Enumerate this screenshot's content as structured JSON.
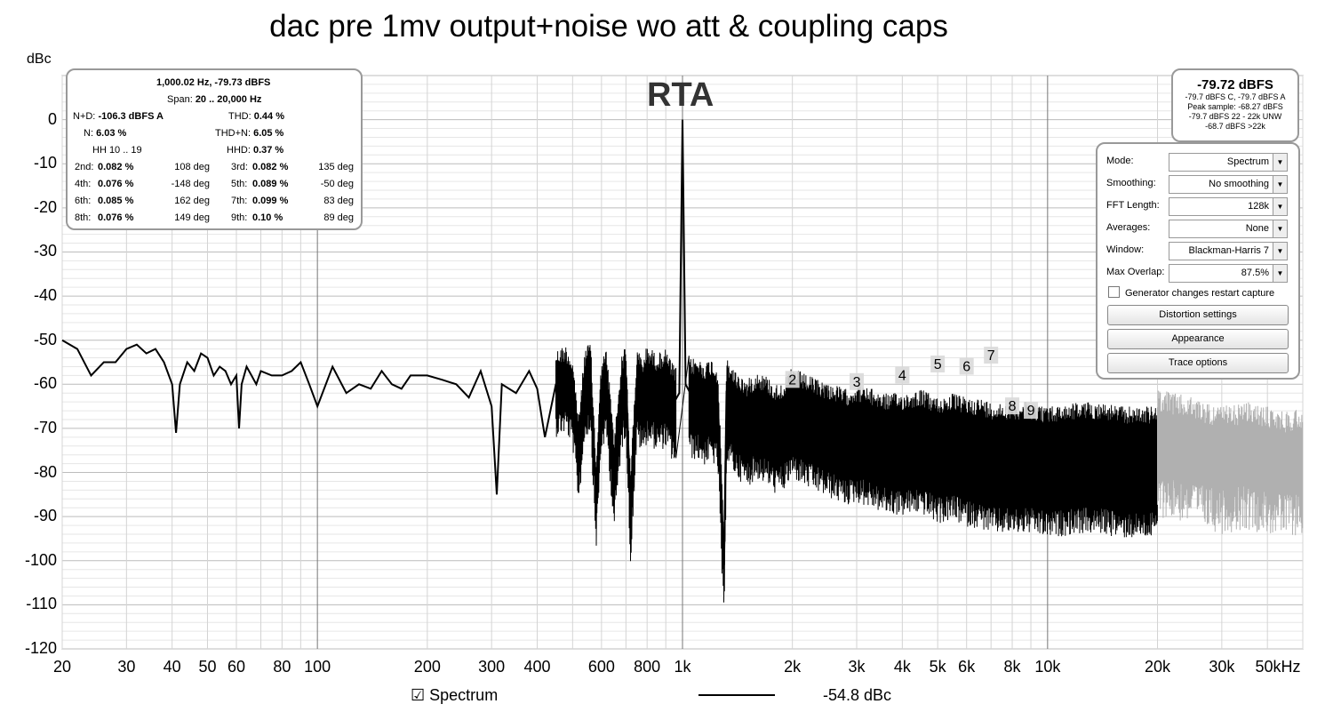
{
  "window": {
    "title": "dac pre 1mv output+noise wo att & coupling caps",
    "plot_label": "RTA"
  },
  "stats_panel": {
    "header": "1,000.02 Hz, -79.73 dBFS",
    "span_label": "Span:",
    "span_value": "20 .. 20,000 Hz",
    "nd_label": "N+D:",
    "nd_value": "-106.3 dBFS A",
    "thd_label": "THD:",
    "thd_value": "0.44 %",
    "n_label": "N:",
    "n_value": "6.03 %",
    "thdn_label": "THD+N:",
    "thdn_value": "6.05 %",
    "hh_label": "HH 10 .. 19",
    "hhd_label": "HHD:",
    "hhd_value": "0.37 %",
    "harmonics": [
      {
        "l1": "2nd:",
        "v1": "0.082 %",
        "d1": "108 deg",
        "l2": "3rd:",
        "v2": "0.082 %",
        "d2": "135 deg"
      },
      {
        "l1": "4th:",
        "v1": "0.076 %",
        "d1": "-148 deg",
        "l2": "5th:",
        "v2": "0.089 %",
        "d2": "-50 deg"
      },
      {
        "l1": "6th:",
        "v1": "0.085 %",
        "d1": "162 deg",
        "l2": "7th:",
        "v2": "0.099 %",
        "d2": "83 deg"
      },
      {
        "l1": "8th:",
        "v1": "0.076 %",
        "d1": "149 deg",
        "l2": "9th:",
        "v2": "0.10 %",
        "d2": "89 deg"
      }
    ]
  },
  "level_panel": {
    "main": "-79.72 dBFS",
    "line1": "-79.7 dBFS C, -79.7 dBFS A",
    "line2": "Peak sample: -68.27 dBFS",
    "line3": "-79.7 dBFS 22 - 22k UNW",
    "line4": "-68.7 dBFS >22k"
  },
  "controls": {
    "mode": {
      "label": "Mode:",
      "value": "Spectrum"
    },
    "smoothing": {
      "label": "Smoothing:",
      "value": "No  smoothing"
    },
    "fft_length": {
      "label": "FFT Length:",
      "value": "128k"
    },
    "averages": {
      "label": "Averages:",
      "value": "None"
    },
    "window": {
      "label": "Window:",
      "value": "Blackman-Harris 7"
    },
    "max_overlap": {
      "label": "Max Overlap:",
      "value": "87.5%"
    },
    "generator_checkbox": "Generator changes restart capture",
    "distortion_button": "Distortion settings",
    "appearance_button": "Appearance",
    "trace_button": "Trace options"
  },
  "legend": {
    "series_name": "Spectrum",
    "value": "-54.8 dBc"
  },
  "colors": {
    "trace": "#000000",
    "trace_out_of_span": "#b0b0b0",
    "grid": "#d0d0d0",
    "panel_border": "#999999"
  },
  "chart_data": {
    "type": "line",
    "title": "dac pre 1mv output+noise wo att & coupling caps",
    "ylabel": "dBc",
    "xlabel": "",
    "x_scale": "log",
    "xlim": [
      20,
      50000
    ],
    "ylim": [
      -120,
      10
    ],
    "grid": true,
    "y_ticks": [
      "0",
      "-10",
      "-20",
      "-30",
      "-40",
      "-50",
      "-60",
      "-70",
      "-80",
      "-90",
      "-100",
      "-110",
      "-120"
    ],
    "x_ticks": [
      {
        "v": 20,
        "t": "20"
      },
      {
        "v": 30,
        "t": "30"
      },
      {
        "v": 40,
        "t": "40"
      },
      {
        "v": 50,
        "t": "50"
      },
      {
        "v": 60,
        "t": "60"
      },
      {
        "v": 80,
        "t": "80"
      },
      {
        "v": 100,
        "t": "100"
      },
      {
        "v": 200,
        "t": "200"
      },
      {
        "v": 300,
        "t": "300"
      },
      {
        "v": 400,
        "t": "400"
      },
      {
        "v": 600,
        "t": "600"
      },
      {
        "v": 800,
        "t": "800"
      },
      {
        "v": 1000,
        "t": "1k"
      },
      {
        "v": 2000,
        "t": "2k"
      },
      {
        "v": 3000,
        "t": "3k"
      },
      {
        "v": 4000,
        "t": "4k"
      },
      {
        "v": 5000,
        "t": "5k"
      },
      {
        "v": 6000,
        "t": "6k"
      },
      {
        "v": 8000,
        "t": "8k"
      },
      {
        "v": 10000,
        "t": "10k"
      },
      {
        "v": 20000,
        "t": "20k"
      },
      {
        "v": 30000,
        "t": "30k"
      },
      {
        "v": 50000,
        "t": "50kHz"
      }
    ],
    "series": [
      {
        "name": "Spectrum",
        "x": [
          20,
          22,
          24,
          26,
          28,
          30,
          32,
          34,
          36,
          38,
          40,
          41,
          42,
          44,
          46,
          48,
          50,
          52,
          54,
          56,
          58,
          60,
          61,
          62,
          64,
          66,
          68,
          70,
          75,
          80,
          85,
          90,
          95,
          100,
          110,
          120,
          130,
          140,
          150,
          160,
          170,
          180,
          200,
          220,
          240,
          260,
          280,
          300,
          310,
          320,
          350,
          380,
          400,
          420,
          450,
          480,
          500,
          520,
          540,
          560,
          580,
          600,
          620,
          650,
          680,
          700,
          720,
          750,
          780,
          800,
          850,
          900,
          950,
          980,
          1000,
          1020,
          1050,
          1100,
          1150,
          1200,
          1250,
          1300,
          1320,
          1350,
          1400,
          1500,
          1600,
          1700,
          1800,
          1900,
          2000,
          2200,
          2400,
          2600,
          2800,
          3000,
          3300,
          3600,
          4000,
          4500,
          5000,
          5500,
          6000,
          6500,
          7000,
          8000,
          9000,
          10000,
          12000,
          14000,
          16000,
          18000,
          20000
        ],
        "y": [
          -50,
          -52,
          -58,
          -55,
          -55,
          -52,
          -51,
          -53,
          -52,
          -55,
          -60,
          -71,
          -60,
          -55,
          -57,
          -53,
          -54,
          -58,
          -56,
          -57,
          -60,
          -58,
          -70,
          -60,
          -56,
          -58,
          -60,
          -57,
          -58,
          -58,
          -57,
          -55,
          -60,
          -65,
          -56,
          -62,
          -60,
          -61,
          -57,
          -60,
          -61,
          -58,
          -58,
          -59,
          -60,
          -63,
          -57,
          -65,
          -85,
          -60,
          -62,
          -57,
          -61,
          -72,
          -60,
          -59,
          -62,
          -75,
          -60,
          -58,
          -85,
          -62,
          -60,
          -80,
          -62,
          -58,
          -88,
          -60,
          -62,
          -59,
          -61,
          -60,
          -64,
          -62,
          0,
          -60,
          -62,
          -62,
          -63,
          -62,
          -64,
          -101,
          -62,
          -63,
          -65,
          -67,
          -65,
          -66,
          -68,
          -67,
          -64,
          -66,
          -67,
          -68,
          -69,
          -68,
          -69,
          -70,
          -70,
          -69,
          -71,
          -70,
          -71,
          -71,
          -72,
          -72,
          -72,
          -73,
          -72,
          -72,
          -73,
          -73,
          -73
        ]
      }
    ],
    "out_of_span_series": {
      "x": [
        20000,
        25000,
        30000,
        35000,
        40000,
        45000,
        50000
      ],
      "y": [
        -70,
        -72,
        -74,
        -73,
        -74,
        -75,
        -74
      ]
    },
    "harmonic_markers": [
      {
        "n": "2",
        "x": 2000,
        "y": -59
      },
      {
        "n": "3",
        "x": 3000,
        "y": -59.5
      },
      {
        "n": "4",
        "x": 4000,
        "y": -58
      },
      {
        "n": "5",
        "x": 5000,
        "y": -55.5
      },
      {
        "n": "6",
        "x": 6000,
        "y": -56
      },
      {
        "n": "7",
        "x": 7000,
        "y": -53.5
      },
      {
        "n": "8",
        "x": 8000,
        "y": -65
      },
      {
        "n": "9",
        "x": 9000,
        "y": -66
      }
    ]
  }
}
